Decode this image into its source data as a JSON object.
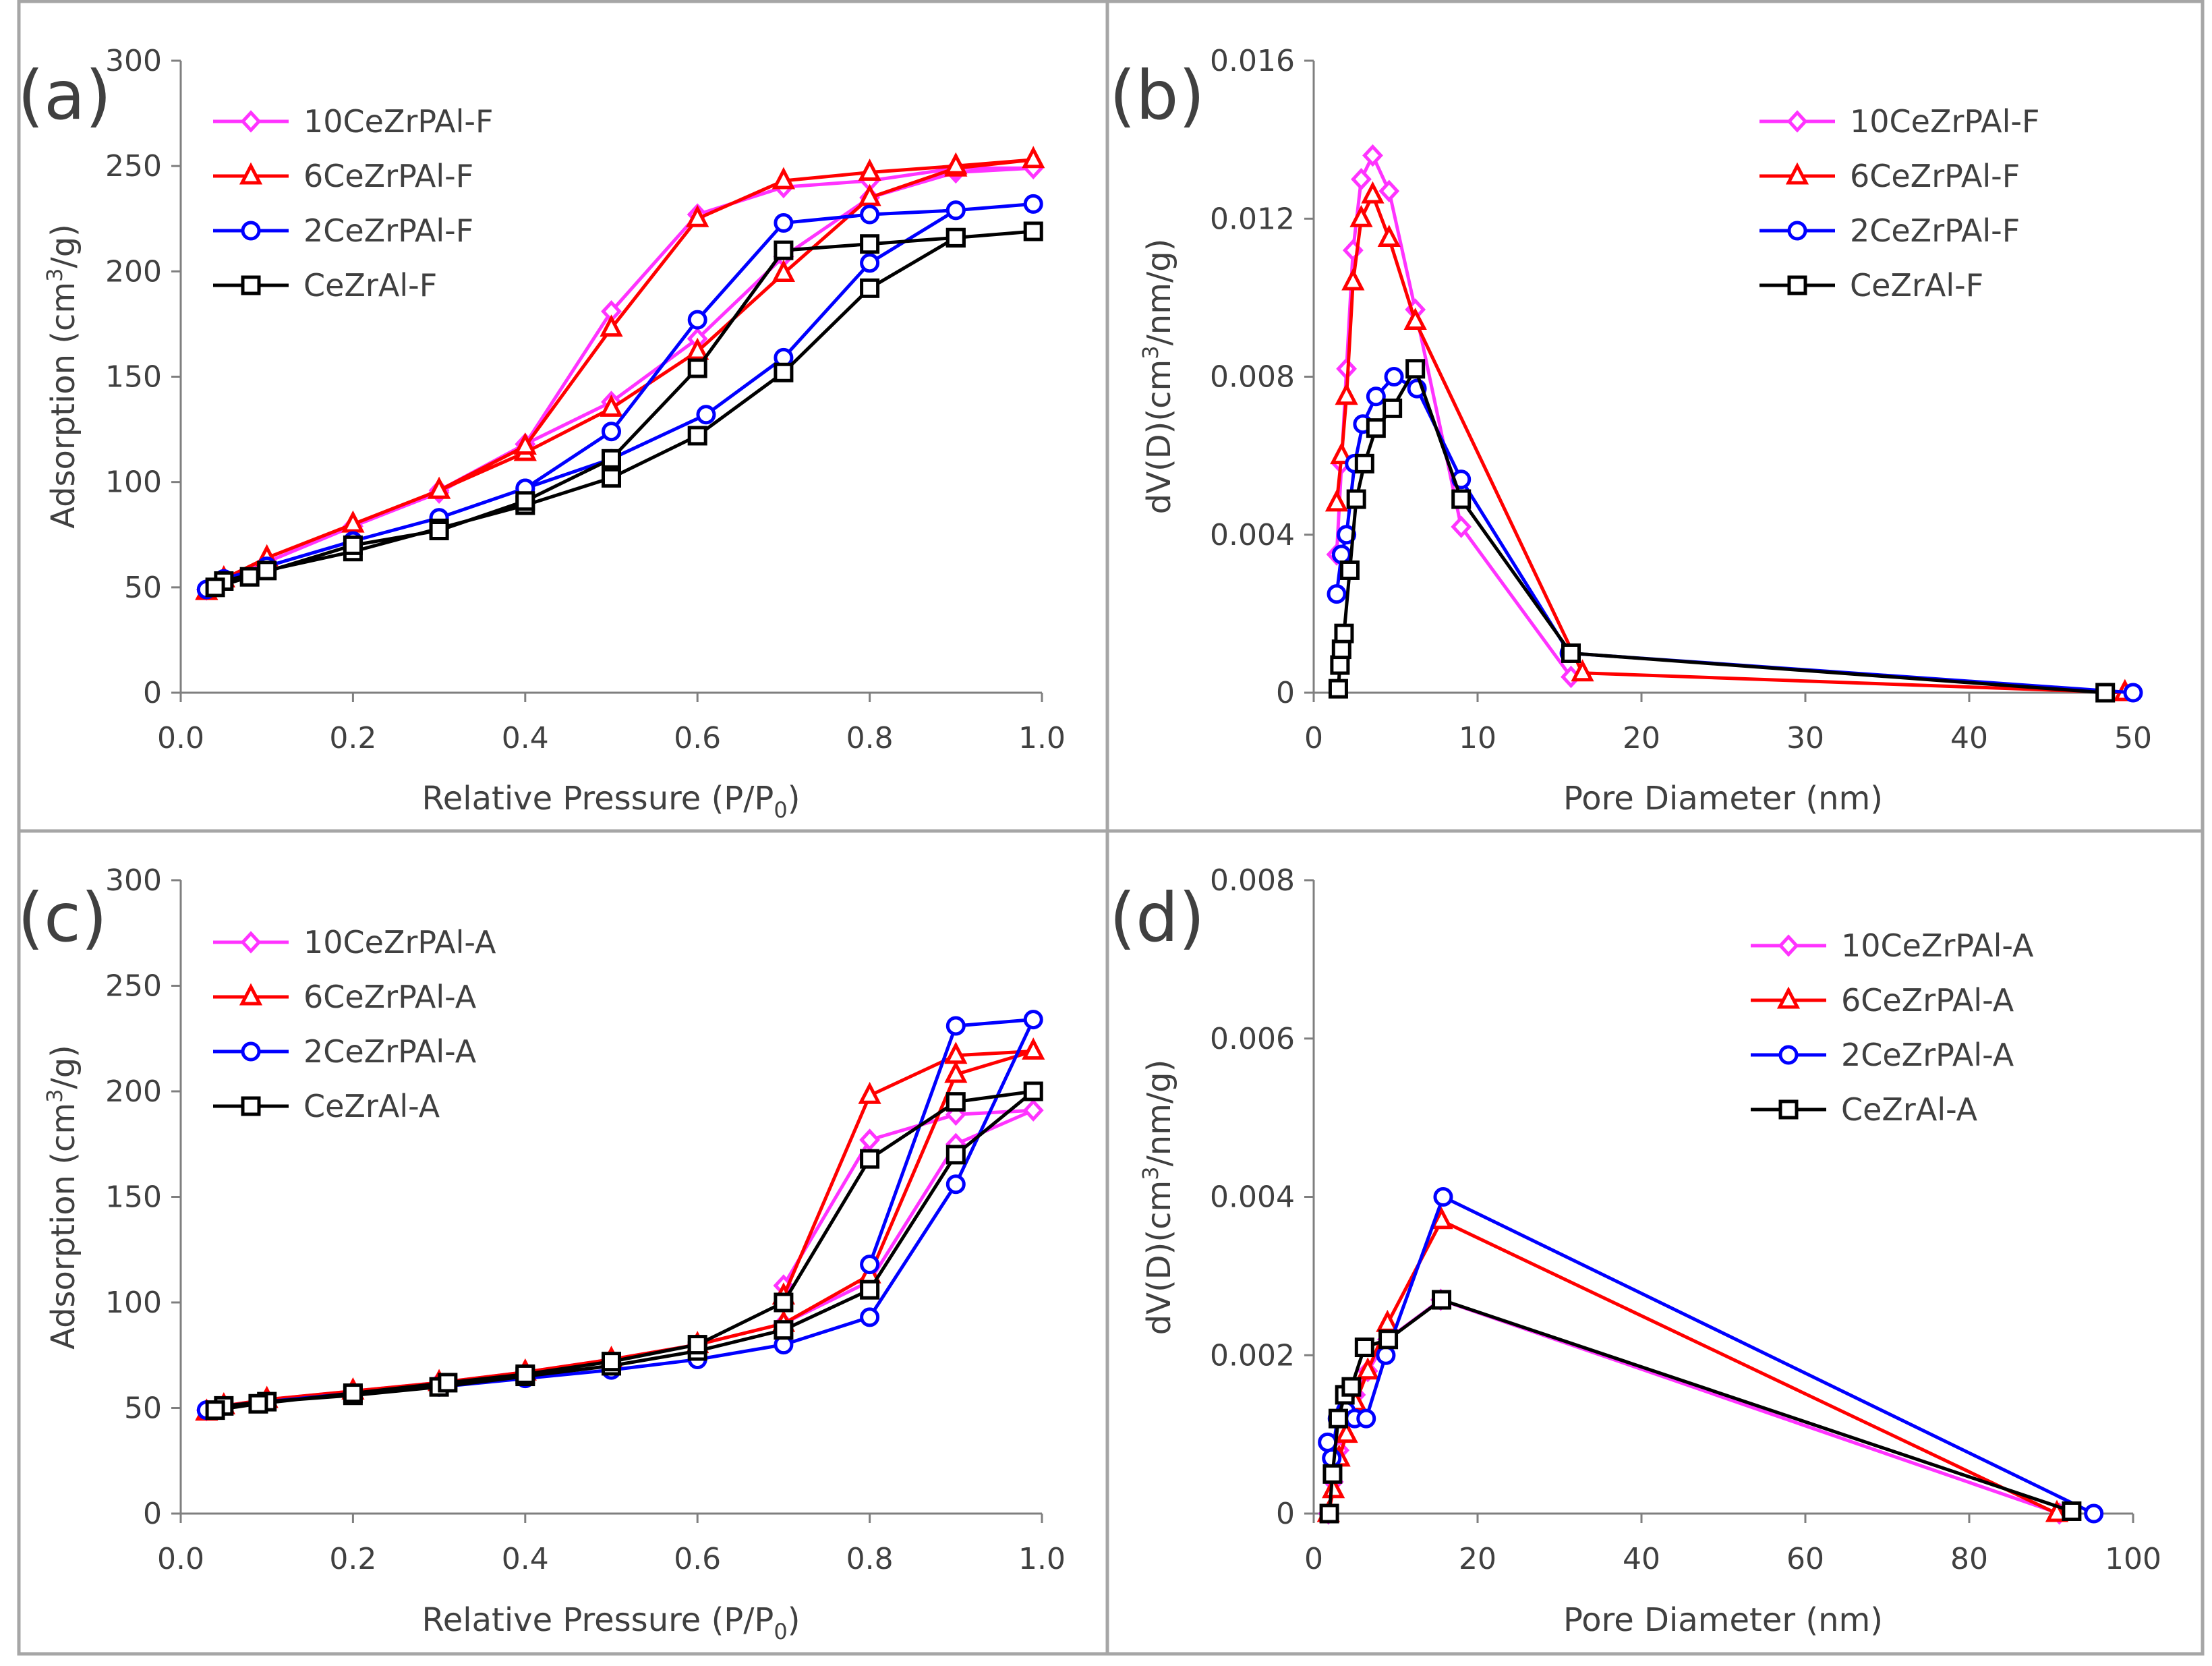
{
  "series_styles": [
    {
      "key": "p10",
      "color": "#ff33ff",
      "marker": "diamond"
    },
    {
      "key": "p6",
      "color": "#ff0000",
      "marker": "triangle"
    },
    {
      "key": "p2",
      "color": "#0000ff",
      "marker": "circle"
    },
    {
      "key": "p0",
      "color": "#000000",
      "marker": "square"
    }
  ],
  "chart_data": [
    {
      "id": "a",
      "panel_label": "(a)",
      "type": "line",
      "xlabel": "Relative Pressure (P/P",
      "xlabel_sub": "0",
      "xlabel_end": ")",
      "ylabel": "Adsorption (cm",
      "ylabel_sup": "3",
      "ylabel_end": "/g)",
      "xlim": [
        0,
        1
      ],
      "ylim": [
        0,
        300
      ],
      "xticks": [
        0,
        0.2,
        0.4,
        0.6,
        0.8,
        1.0
      ],
      "xtick_labels": [
        "0.0",
        "0.2",
        "0.4",
        "0.6",
        "0.8",
        "1.0"
      ],
      "yticks": [
        0,
        50,
        100,
        150,
        200,
        250,
        300
      ],
      "ytick_labels": [
        "0",
        "50",
        "100",
        "150",
        "200",
        "250",
        "300"
      ],
      "legend_position": "top-left",
      "series": [
        {
          "name": "10CeZrPAl-F",
          "style": "p10",
          "x": [
            0.03,
            0.05,
            0.1,
            0.2,
            0.3,
            0.4,
            0.5,
            0.6,
            0.7,
            0.8,
            0.9,
            0.99,
            0.9,
            0.8,
            0.7,
            0.6,
            0.5,
            0.4,
            0.3
          ],
          "y": [
            49,
            54,
            62,
            79,
            95,
            118,
            138,
            168,
            207,
            235,
            247,
            249,
            249,
            243,
            240,
            227,
            181,
            118,
            96
          ]
        },
        {
          "name": "6CeZrPAl-F",
          "style": "p6",
          "x": [
            0.03,
            0.05,
            0.1,
            0.2,
            0.3,
            0.4,
            0.5,
            0.6,
            0.7,
            0.8,
            0.9,
            0.99,
            0.9,
            0.8,
            0.7,
            0.6,
            0.5,
            0.4,
            0.3
          ],
          "y": [
            48,
            54,
            64,
            80,
            96,
            114,
            135,
            162,
            199,
            235,
            249,
            253,
            250,
            247,
            243,
            225,
            173,
            117,
            96
          ]
        },
        {
          "name": "2CeZrPAl-F",
          "style": "p2",
          "x": [
            0.03,
            0.05,
            0.1,
            0.2,
            0.3,
            0.4,
            0.5,
            0.61,
            0.7,
            0.8,
            0.9,
            0.99,
            0.9,
            0.8,
            0.7,
            0.6,
            0.5,
            0.4,
            0.3
          ],
          "y": [
            49,
            54,
            60,
            72,
            83,
            97,
            111,
            132,
            159,
            204,
            229,
            232,
            229,
            227,
            223,
            177,
            124,
            97,
            83
          ]
        },
        {
          "name": "CeZrAl-F",
          "style": "p0",
          "x": [
            0.05,
            0.1,
            0.2,
            0.3,
            0.4,
            0.5,
            0.6,
            0.7,
            0.8,
            0.9,
            0.99,
            0.9,
            0.8,
            0.7,
            0.6,
            0.5,
            0.4,
            0.3,
            0.2,
            0.08,
            0.04
          ],
          "y": [
            53,
            58,
            67,
            78,
            89,
            102,
            122,
            152,
            192,
            216,
            219,
            216,
            213,
            210,
            154,
            111,
            91,
            77,
            70,
            55,
            50
          ]
        }
      ]
    },
    {
      "id": "b",
      "panel_label": "(b)",
      "type": "line",
      "xlabel": "Pore Diameter (nm)",
      "ylabel": "dV(D)(cm",
      "ylabel_sup": "3",
      "ylabel_end": "/nm/g)",
      "xlim": [
        0,
        50
      ],
      "ylim": [
        0,
        0.016
      ],
      "xticks": [
        0,
        10,
        20,
        30,
        40,
        50
      ],
      "xtick_labels": [
        "0",
        "10",
        "20",
        "30",
        "40",
        "50"
      ],
      "yticks": [
        0,
        0.004,
        0.008,
        0.012,
        0.016
      ],
      "ytick_labels": [
        "0",
        "0.004",
        "0.008",
        "0.012",
        "0.016"
      ],
      "legend_position": "top-right",
      "series": [
        {
          "name": "10CeZrPAl-F",
          "style": "p10",
          "x": [
            1.4,
            1.7,
            2.0,
            2.4,
            2.9,
            3.6,
            4.6,
            6.2,
            9.0,
            15.7
          ],
          "y": [
            0.0035,
            0.0058,
            0.0082,
            0.0112,
            0.013,
            0.0136,
            0.0127,
            0.0097,
            0.0042,
            0.0004
          ]
        },
        {
          "name": "6CeZrPAl-F",
          "style": "p6",
          "x": [
            1.4,
            1.7,
            2.0,
            2.4,
            2.9,
            3.6,
            4.6,
            6.2,
            16.4,
            49.5
          ],
          "y": [
            0.0048,
            0.006,
            0.0075,
            0.0104,
            0.012,
            0.0126,
            0.0115,
            0.0094,
            0.0005,
            0.0
          ]
        },
        {
          "name": "2CeZrPAl-F",
          "style": "p2",
          "x": [
            1.4,
            1.7,
            2.0,
            2.5,
            3.0,
            3.8,
            4.9,
            6.3,
            9.0,
            15.6,
            50.0
          ],
          "y": [
            0.0025,
            0.0035,
            0.004,
            0.0058,
            0.0068,
            0.0075,
            0.008,
            0.0077,
            0.0054,
            0.001,
            0.0
          ]
        },
        {
          "name": "CeZrAl-F",
          "style": "p0",
          "x": [
            1.5,
            1.6,
            1.7,
            1.85,
            2.2,
            2.6,
            3.1,
            3.8,
            4.8,
            6.2,
            9.0,
            15.7,
            48.3
          ],
          "y": [
            0.0001,
            0.0007,
            0.0011,
            0.0015,
            0.0031,
            0.0049,
            0.0058,
            0.0067,
            0.0072,
            0.0082,
            0.0049,
            0.001,
            0.0
          ]
        }
      ]
    },
    {
      "id": "c",
      "panel_label": "(c)",
      "type": "line",
      "xlabel": "Relative Pressure (P/P",
      "xlabel_sub": "0",
      "xlabel_end": ")",
      "ylabel": "Adsorption (cm",
      "ylabel_sup": "3",
      "ylabel_end": "/g)",
      "xlim": [
        0,
        1
      ],
      "ylim": [
        0,
        300
      ],
      "xticks": [
        0,
        0.2,
        0.4,
        0.6,
        0.8,
        1.0
      ],
      "xtick_labels": [
        "0.0",
        "0.2",
        "0.4",
        "0.6",
        "0.8",
        "1.0"
      ],
      "yticks": [
        0,
        50,
        100,
        150,
        200,
        250,
        300
      ],
      "ytick_labels": [
        "0",
        "50",
        "100",
        "150",
        "200",
        "250",
        "300"
      ],
      "legend_position": "top-left",
      "series": [
        {
          "name": "10CeZrPAl-A",
          "style": "p10",
          "x": [
            0.03,
            0.05,
            0.1,
            0.2,
            0.3,
            0.4,
            0.5,
            0.6,
            0.7,
            0.8,
            0.9,
            0.99,
            0.9,
            0.8,
            0.7
          ],
          "y": [
            49,
            51,
            54,
            58,
            62,
            67,
            73,
            80,
            90,
            110,
            175,
            191,
            189,
            177,
            108
          ]
        },
        {
          "name": "6CeZrPAl-A",
          "style": "p6",
          "x": [
            0.03,
            0.05,
            0.1,
            0.2,
            0.3,
            0.4,
            0.5,
            0.6,
            0.7,
            0.8,
            0.9,
            0.99,
            0.9,
            0.8,
            0.7
          ],
          "y": [
            48,
            51,
            54,
            58,
            62,
            67,
            73,
            80,
            90,
            113,
            208,
            219,
            217,
            198,
            103
          ]
        },
        {
          "name": "2CeZrPAl-A",
          "style": "p2",
          "x": [
            0.03,
            0.05,
            0.1,
            0.2,
            0.3,
            0.4,
            0.5,
            0.6,
            0.7,
            0.8,
            0.9,
            0.99,
            0.9,
            0.8
          ],
          "y": [
            49,
            51,
            53,
            57,
            60,
            64,
            68,
            73,
            80,
            93,
            156,
            234,
            231,
            118
          ]
        },
        {
          "name": "CeZrAl-A",
          "style": "p0",
          "x": [
            0.05,
            0.1,
            0.2,
            0.3,
            0.4,
            0.5,
            0.6,
            0.7,
            0.8,
            0.9,
            0.99,
            0.9,
            0.8,
            0.7,
            0.6,
            0.5,
            0.4,
            0.31,
            0.2,
            0.09,
            0.04
          ],
          "y": [
            51,
            53,
            56,
            60,
            65,
            70,
            77,
            87,
            106,
            170,
            200,
            195,
            168,
            100,
            80,
            72,
            66,
            62,
            57,
            52,
            49
          ]
        }
      ]
    },
    {
      "id": "d",
      "panel_label": "(d)",
      "type": "line",
      "xlabel": "Pore Diameter (nm)",
      "ylabel": "dV(D)(cm",
      "ylabel_sup": "3",
      "ylabel_end": "/nm/g)",
      "xlim": [
        0,
        100
      ],
      "ylim": [
        0,
        0.008
      ],
      "xticks": [
        0,
        20,
        40,
        60,
        80,
        100
      ],
      "xtick_labels": [
        "0",
        "20",
        "40",
        "60",
        "80",
        "100"
      ],
      "yticks": [
        0,
        0.002,
        0.004,
        0.006,
        0.008
      ],
      "ytick_labels": [
        "0",
        "0.002",
        "0.004",
        "0.006",
        "0.008"
      ],
      "legend_position": "top-right",
      "series": [
        {
          "name": "10CeZrPAl-A",
          "style": "p10",
          "x": [
            1.8,
            2.4,
            3.1,
            4.0,
            5.1,
            6.6,
            9.0,
            15.5,
            91.0
          ],
          "y": [
            0.0,
            0.0004,
            0.0008,
            0.0012,
            0.0015,
            0.0018,
            0.0022,
            0.0027,
            0.0
          ]
        },
        {
          "name": "6CeZrPAl-A",
          "style": "p6",
          "x": [
            1.8,
            2.4,
            3.1,
            4.0,
            5.1,
            6.6,
            9.0,
            15.6,
            90.7
          ],
          "y": [
            0.0,
            0.0003,
            0.0007,
            0.001,
            0.0014,
            0.0018,
            0.0024,
            0.0037,
            0.0
          ]
        },
        {
          "name": "2CeZrPAl-A",
          "style": "p2",
          "x": [
            1.7,
            2.2,
            2.9,
            3.9,
            5.0,
            6.4,
            8.8,
            15.8,
            95.2
          ],
          "y": [
            0.0009,
            0.0007,
            0.0012,
            0.0013,
            0.0012,
            0.0012,
            0.002,
            0.004,
            0.0
          ]
        },
        {
          "name": "CeZrAl-A",
          "style": "p0",
          "x": [
            1.9,
            2.3,
            3.0,
            3.8,
            4.6,
            6.2,
            9.1,
            15.6,
            92.5
          ],
          "y": [
            0.0,
            0.0005,
            0.0012,
            0.0015,
            0.0016,
            0.0021,
            0.0022,
            0.0027,
            3e-05
          ]
        }
      ]
    }
  ]
}
